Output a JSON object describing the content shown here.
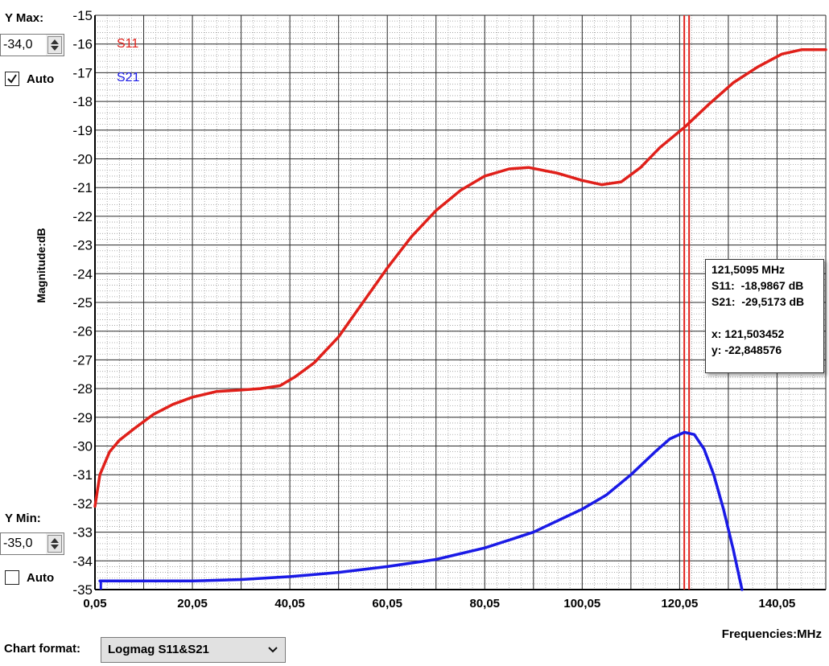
{
  "controls": {
    "ymax_label": "Y Max:",
    "ymax_value": "-34,0",
    "ymax_auto_label": "Auto",
    "ymax_auto_checked": true,
    "ymin_label": "Y Min:",
    "ymin_value": "-35,0",
    "ymin_auto_label": "Auto",
    "ymin_auto_checked": false,
    "chart_format_label": "Chart format:",
    "chart_format_value": "Logmag S11&S21"
  },
  "tooltip": {
    "freq": "121,5095 MHz",
    "s11": "S11:  -18,9867 dB",
    "s21": "S21:  -29,5173 dB",
    "x": "x: 121,503452",
    "y": "y: -22,848576"
  },
  "chart_data": {
    "type": "line",
    "title": "",
    "xlabel": "Frequencies:MHz",
    "ylabel": "Magnitude:dB",
    "xlim": [
      0.05,
      150.05
    ],
    "ylim": [
      -35,
      -15
    ],
    "x_ticks": [
      "0,05",
      "20,05",
      "40,05",
      "60,05",
      "80,05",
      "100,05",
      "120,05",
      "140,05"
    ],
    "x_tick_values": [
      0.05,
      20.05,
      40.05,
      60.05,
      80.05,
      100.05,
      120.05,
      140.05
    ],
    "y_ticks": [
      "-15",
      "-16",
      "-17",
      "-18",
      "-19",
      "-20",
      "-21",
      "-22",
      "-23",
      "-24",
      "-25",
      "-26",
      "-27",
      "-28",
      "-29",
      "-30",
      "-31",
      "-32",
      "-33",
      "-34",
      "-35"
    ],
    "y_tick_values": [
      -15,
      -16,
      -17,
      -18,
      -19,
      -20,
      -21,
      -22,
      -23,
      -24,
      -25,
      -26,
      -27,
      -28,
      -29,
      -30,
      -31,
      -32,
      -33,
      -34,
      -35
    ],
    "grid": true,
    "legend": "top-left inside",
    "marker_x": 121.5,
    "series": [
      {
        "name": "S11",
        "color": "#e0201a",
        "points": [
          [
            0.05,
            -32.1
          ],
          [
            1.05,
            -31.0
          ],
          [
            3.05,
            -30.2
          ],
          [
            5.05,
            -29.8
          ],
          [
            8.05,
            -29.4
          ],
          [
            12.05,
            -28.9
          ],
          [
            16.05,
            -28.55
          ],
          [
            20.05,
            -28.3
          ],
          [
            25.05,
            -28.1
          ],
          [
            30.05,
            -28.05
          ],
          [
            34.05,
            -28.0
          ],
          [
            38.05,
            -27.9
          ],
          [
            41.05,
            -27.6
          ],
          [
            45.05,
            -27.1
          ],
          [
            50.05,
            -26.2
          ],
          [
            55.05,
            -25.0
          ],
          [
            60.05,
            -23.8
          ],
          [
            65.05,
            -22.7
          ],
          [
            70.05,
            -21.8
          ],
          [
            75.05,
            -21.1
          ],
          [
            80.05,
            -20.6
          ],
          [
            85.05,
            -20.35
          ],
          [
            89.05,
            -20.3
          ],
          [
            95.05,
            -20.5
          ],
          [
            100.05,
            -20.75
          ],
          [
            104.05,
            -20.9
          ],
          [
            108.05,
            -20.8
          ],
          [
            112.05,
            -20.3
          ],
          [
            116.05,
            -19.6
          ],
          [
            121.05,
            -18.9
          ],
          [
            126.05,
            -18.1
          ],
          [
            131.05,
            -17.35
          ],
          [
            136.05,
            -16.8
          ],
          [
            141.05,
            -16.35
          ],
          [
            145.05,
            -16.2
          ],
          [
            150.05,
            -16.2
          ]
        ]
      },
      {
        "name": "S21",
        "color": "#1a1ae6",
        "points": [
          [
            1.05,
            -34.7
          ],
          [
            10.05,
            -34.7
          ],
          [
            20.05,
            -34.7
          ],
          [
            30.05,
            -34.65
          ],
          [
            40.05,
            -34.55
          ],
          [
            50.05,
            -34.4
          ],
          [
            60.05,
            -34.2
          ],
          [
            70.05,
            -33.95
          ],
          [
            80.05,
            -33.55
          ],
          [
            90.05,
            -33.0
          ],
          [
            100.05,
            -32.2
          ],
          [
            105.05,
            -31.7
          ],
          [
            110.05,
            -31.0
          ],
          [
            115.05,
            -30.2
          ],
          [
            118.05,
            -29.75
          ],
          [
            121.05,
            -29.52
          ],
          [
            123.05,
            -29.6
          ],
          [
            125.05,
            -30.1
          ],
          [
            127.05,
            -31.0
          ],
          [
            129.05,
            -32.2
          ],
          [
            131.05,
            -33.6
          ],
          [
            132.85,
            -35.0
          ]
        ]
      }
    ]
  }
}
